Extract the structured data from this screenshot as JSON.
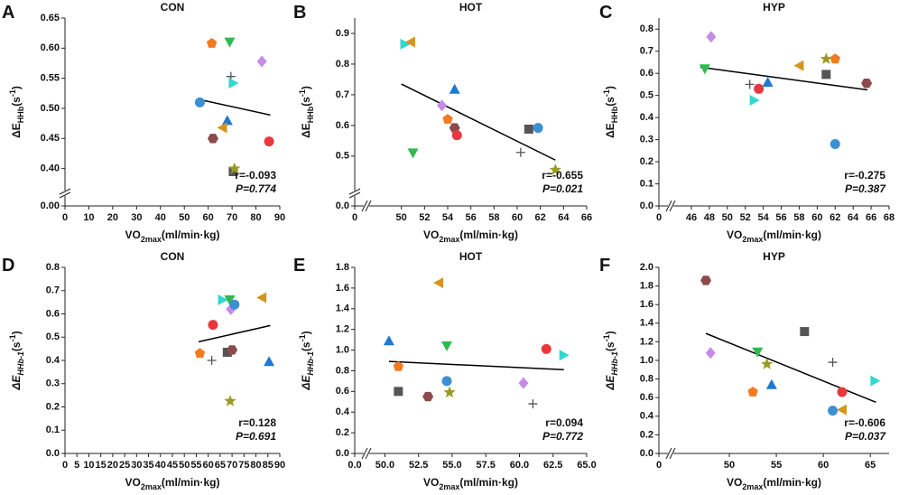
{
  "chart_data": [
    {
      "type": "scatter",
      "panel": "A",
      "title": "CON",
      "xlabel": {
        "main": "VO",
        "sub": "2max",
        "rest": "(ml/min·kg)"
      },
      "ylabel": {
        "main": "ΔE",
        "sub": "HHb",
        "unit": "(s",
        "sup": "-1",
        "close": ")"
      },
      "xlim": [
        0,
        90
      ],
      "xticks": [
        0,
        10,
        20,
        30,
        40,
        50,
        60,
        70,
        80,
        90
      ],
      "ylim": [
        0.38,
        0.65
      ],
      "yticks": [
        {
          "value": 0.4,
          "label": "0.40"
        },
        0.45,
        {
          "value": 0.5,
          "label": "0.50"
        },
        0.55,
        {
          "value": 0.6,
          "label": "0.60"
        },
        0.65
      ],
      "y_break_tick": {
        "value": 0,
        "label": "0.00"
      },
      "x": [
        56.5,
        61.5,
        69,
        69.5,
        70.5,
        82.5,
        68,
        62,
        66,
        70.5,
        71,
        85.5
      ],
      "values": [
        0.51,
        0.608,
        0.61,
        0.553,
        0.542,
        0.578,
        0.48,
        0.45,
        0.468,
        0.395,
        0.4,
        0.445
      ],
      "markers": [
        "circle",
        "pentagon",
        "tri-down",
        "plus",
        "tri-right",
        "diamond",
        "tri-up",
        "hexagon",
        "tri-left",
        "square",
        "star",
        "circle"
      ],
      "colors": [
        "#3b8fd4",
        "#f47a1f",
        "#2fba4f",
        "#555555",
        "#2fd9d0",
        "#c58be8",
        "#1f78d1",
        "#8c4a4a",
        "#d4951f",
        "#555555",
        "#9b9b22",
        "#e8383d"
      ],
      "trendline": {
        "x": [
          56,
          86
        ],
        "y": [
          0.515,
          0.489
        ]
      },
      "annotations": [
        "r=-0.093",
        "P=0.774"
      ]
    },
    {
      "type": "scatter",
      "panel": "B",
      "title": "HOT",
      "xlabel": {
        "main": "VO",
        "sub": "2max",
        "rest": "(ml/min·kg)"
      },
      "ylabel": {
        "main": "ΔE",
        "sub": "HHb",
        "unit": "(s",
        "sup": "-1",
        "close": ")"
      },
      "xlim": [
        48,
        66
      ],
      "xticks": [
        50,
        52,
        54,
        56,
        58,
        60,
        62,
        64,
        66
      ],
      "x_break_tick": 0,
      "ylim": [
        0.42,
        0.95
      ],
      "yticks": [
        0.5,
        0.6,
        0.7,
        0.8,
        0.9
      ],
      "y_break_tick": {
        "value": 0,
        "label": "0.0"
      },
      "x": [
        50.3,
        50.8,
        54.6,
        53.5,
        54,
        54.6,
        54.8,
        51,
        61,
        61.8,
        60.3,
        63.3
      ],
      "values": [
        0.865,
        0.872,
        0.718,
        0.665,
        0.62,
        0.592,
        0.568,
        0.51,
        0.588,
        0.592,
        0.512,
        0.455
      ],
      "markers": [
        "tri-right",
        "tri-left",
        "tri-up",
        "diamond",
        "pentagon",
        "hexagon",
        "circle",
        "tri-down",
        "square",
        "circle",
        "plus",
        "star"
      ],
      "colors": [
        "#2fd9d0",
        "#d4951f",
        "#1f78d1",
        "#c58be8",
        "#f47a1f",
        "#8c4a4a",
        "#e8383d",
        "#2fba4f",
        "#555555",
        "#3b8fd4",
        "#555555",
        "#9b9b22"
      ],
      "trendline": {
        "x": [
          50,
          63.3
        ],
        "y": [
          0.735,
          0.487
        ]
      },
      "annotations": [
        "r=-0.655",
        "P=0.021"
      ]
    },
    {
      "type": "scatter",
      "panel": "C",
      "title": "HYP",
      "xlabel": {
        "main": "VO",
        "sub": "2max",
        "rest": "(ml/min·kg)"
      },
      "ylabel": {
        "main": "ΔE",
        "sub": "HHb",
        "unit": "(s",
        "sup": "-1",
        "close": ")"
      },
      "xlim": [
        45,
        68
      ],
      "xticks": [
        46,
        48,
        50,
        52,
        54,
        56,
        58,
        60,
        62,
        64,
        66,
        68
      ],
      "x_break_tick": 0,
      "ylim": [
        0,
        0.85
      ],
      "yticks": [
        {
          "value": 0,
          "label": "0.0"
        },
        0.1,
        0.2,
        0.3,
        0.4,
        0.5,
        0.6,
        0.7,
        0.8
      ],
      "x": [
        48.2,
        47.5,
        52.5,
        53,
        53.5,
        54.5,
        58,
        61,
        62,
        61,
        65.5,
        62
      ],
      "values": [
        0.765,
        0.62,
        0.55,
        0.478,
        0.53,
        0.56,
        0.635,
        0.665,
        0.665,
        0.595,
        0.555,
        0.28
      ],
      "markers": [
        "diamond",
        "tri-down",
        "plus",
        "tri-right",
        "circle",
        "tri-up",
        "tri-left",
        "star",
        "pentagon",
        "square",
        "hexagon",
        "circle"
      ],
      "colors": [
        "#c58be8",
        "#2fba4f",
        "#555555",
        "#2fd9d0",
        "#e8383d",
        "#1f78d1",
        "#d4951f",
        "#9b9b22",
        "#f47a1f",
        "#555555",
        "#8c4a4a",
        "#3b8fd4"
      ],
      "trendline": {
        "x": [
          47,
          65.6
        ],
        "y": [
          0.628,
          0.525
        ]
      },
      "annotations": [
        "r=-0.275",
        "P=0.387"
      ]
    },
    {
      "type": "scatter",
      "panel": "D",
      "title": "CON",
      "xlabel": {
        "main": "VO",
        "sub": "2max",
        "rest": "(ml/min·kg)"
      },
      "ylabel": {
        "main": "ΔE",
        "sub": "HHb-1",
        "unit": "(s",
        "sup": "-1",
        "close": ")"
      },
      "xlim": [
        0,
        90
      ],
      "xticks": [
        0,
        5,
        10,
        15,
        20,
        25,
        30,
        35,
        40,
        45,
        50,
        55,
        60,
        65,
        70,
        75,
        80,
        85,
        90
      ],
      "ylim": [
        0,
        0.8
      ],
      "yticks": [
        {
          "value": 0,
          "label": "0.0"
        },
        0.1,
        0.2,
        0.3,
        0.4,
        0.5,
        0.6,
        0.7,
        0.8
      ],
      "x": [
        56.5,
        62,
        61.5,
        66,
        69,
        69.5,
        71,
        68,
        70,
        69.2,
        82.5,
        85.5
      ],
      "values": [
        0.43,
        0.553,
        0.4,
        0.66,
        0.66,
        0.62,
        0.64,
        0.435,
        0.445,
        0.225,
        0.67,
        0.395
      ],
      "markers": [
        "pentagon",
        "circle",
        "plus",
        "tri-right",
        "tri-down",
        "diamond",
        "circle",
        "square",
        "hexagon",
        "star",
        "tri-left",
        "tri-up"
      ],
      "colors": [
        "#f47a1f",
        "#e8383d",
        "#555555",
        "#2fd9d0",
        "#2fba4f",
        "#c58be8",
        "#3b8fd4",
        "#555555",
        "#8c4a4a",
        "#9b9b22",
        "#d4951f",
        "#1f78d1"
      ],
      "trendline": {
        "x": [
          56,
          86
        ],
        "y": [
          0.48,
          0.55
        ]
      },
      "annotations": [
        "r=0.128",
        "P=0.691"
      ]
    },
    {
      "type": "scatter",
      "panel": "E",
      "title": "HOT",
      "xlabel": {
        "main": "VO",
        "sub": "2max",
        "rest": "(ml/min·kg)"
      },
      "ylabel": {
        "main": "ΔE",
        "sub": "HHb-1",
        "unit": "(s",
        "sup": "-1",
        "close": ")"
      },
      "xlim": [
        49.5,
        65
      ],
      "xticks": [
        {
          "value": 50,
          "label": "50.0"
        },
        52.5,
        {
          "value": 55,
          "label": "55.0"
        },
        57.5,
        {
          "value": 60,
          "label": "60.0"
        },
        62.5,
        {
          "value": 65,
          "label": "65.0"
        }
      ],
      "x_break_tick": {
        "value": 0,
        "label": "0.0"
      },
      "ylim": [
        0,
        1.8
      ],
      "yticks": [
        {
          "value": 0,
          "label": "0.0"
        },
        0.2,
        0.4,
        0.6,
        0.8,
        {
          "value": 1,
          "label": "1.0"
        },
        1.2,
        1.4,
        1.6,
        1.8
      ],
      "x": [
        54,
        50.3,
        54.6,
        62,
        63.3,
        51,
        54.6,
        60.3,
        51,
        54.8,
        53.2,
        61
      ],
      "values": [
        1.65,
        1.09,
        1.04,
        1.01,
        0.95,
        0.84,
        0.7,
        0.68,
        0.6,
        0.59,
        0.55,
        0.48
      ],
      "markers": [
        "tri-left",
        "tri-up",
        "tri-down",
        "circle",
        "tri-right",
        "pentagon",
        "circle",
        "diamond",
        "square",
        "star",
        "hexagon",
        "plus"
      ],
      "colors": [
        "#d4951f",
        "#1f78d1",
        "#2fba4f",
        "#e8383d",
        "#2fd9d0",
        "#f47a1f",
        "#3b8fd4",
        "#c58be8",
        "#555555",
        "#9b9b22",
        "#8c4a4a",
        "#555555"
      ],
      "trendline": {
        "x": [
          50.3,
          63.3
        ],
        "y": [
          0.89,
          0.81
        ]
      },
      "annotations": [
        "r=0.094",
        "P=0.772"
      ]
    },
    {
      "type": "scatter",
      "panel": "F",
      "title": "HYP",
      "xlabel": {
        "main": "VO",
        "sub": "2max",
        "rest": "(ml/min·kg)"
      },
      "ylabel": {
        "main": "ΔE",
        "sub": "HHb-1",
        "unit": "(s",
        "sup": "-1",
        "close": ")"
      },
      "xlim": [
        45,
        67
      ],
      "xticks": [
        50,
        55,
        60,
        65
      ],
      "x_break_tick": 0,
      "ylim": [
        0,
        2
      ],
      "yticks": [
        {
          "value": 0,
          "label": "0.0"
        },
        0.2,
        0.4,
        0.6,
        0.8,
        {
          "value": 1,
          "label": "1.0"
        },
        1.2,
        1.4,
        1.6,
        1.8,
        {
          "value": 2,
          "label": "2.0"
        }
      ],
      "x": [
        47.5,
        58,
        53,
        48,
        54,
        61,
        65.5,
        54.5,
        62,
        52.5,
        62,
        61
      ],
      "values": [
        1.86,
        1.31,
        1.09,
        1.08,
        0.96,
        0.98,
        0.78,
        0.74,
        0.66,
        0.66,
        0.47,
        0.46
      ],
      "markers": [
        "hexagon",
        "square",
        "tri-down",
        "diamond",
        "star",
        "plus",
        "tri-right",
        "tri-up",
        "circle",
        "pentagon",
        "tri-left",
        "circle"
      ],
      "colors": [
        "#8c4a4a",
        "#555555",
        "#2fba4f",
        "#c58be8",
        "#9b9b22",
        "#555555",
        "#2fd9d0",
        "#1f78d1",
        "#e8383d",
        "#f47a1f",
        "#d4951f",
        "#3b8fd4"
      ],
      "trendline": {
        "x": [
          47.5,
          65.6
        ],
        "y": [
          1.29,
          0.55
        ]
      },
      "annotations": [
        "r=-0.606",
        "P=0.037"
      ]
    }
  ]
}
